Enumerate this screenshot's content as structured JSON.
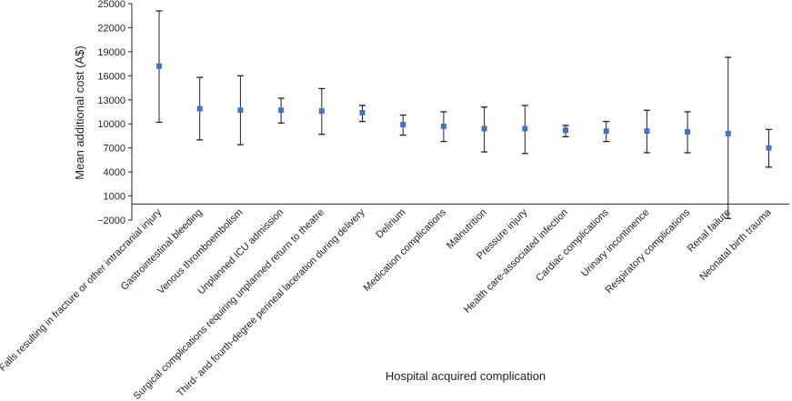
{
  "chart_data": {
    "type": "scatter",
    "title": "",
    "xlabel": "Hospital acquired complication",
    "ylabel": "Mean additional cost (A$)",
    "ylim": [
      -2000,
      25000
    ],
    "yticks": [
      -2000,
      1000,
      4000,
      7000,
      10000,
      13000,
      16000,
      19000,
      22000,
      25000
    ],
    "ytick_labels": [
      "−2000",
      "1000",
      "4000",
      "7000",
      "10000",
      "13000",
      "16000",
      "19000",
      "22000",
      "25000"
    ],
    "grid": false,
    "marker_color": "#4472c4",
    "errorbar_color": "#222222",
    "categories": [
      "Falls resulting in fracture or other intracranial injury",
      "Gastrointestinal bleeding",
      "Venous thromboembolism",
      "Unplanned ICU admission",
      "Surgical complications requiring unplanned return to theatre",
      "Third- and fourth-degree perineal laceration during delivery",
      "Delirium",
      "Medication complications",
      "Malnutrition",
      "Pressure injury",
      "Health care-associated infection",
      "Cardiac complications",
      "Urinary incontinence",
      "Respiratory complications",
      "Renal failure",
      "Neonatal birth trauma"
    ],
    "values": [
      17200,
      11900,
      11700,
      11700,
      11600,
      11400,
      9900,
      9700,
      9400,
      9400,
      9200,
      9100,
      9100,
      9000,
      8800,
      7000
    ],
    "lower": [
      10200,
      8000,
      7400,
      10100,
      8700,
      10300,
      8600,
      7800,
      6500,
      6300,
      8400,
      7800,
      6400,
      6400,
      -1800,
      4600
    ],
    "upper": [
      24100,
      15800,
      16000,
      13200,
      14400,
      12300,
      11100,
      11500,
      12100,
      12300,
      9800,
      10300,
      11700,
      11500,
      18300,
      9300
    ]
  }
}
